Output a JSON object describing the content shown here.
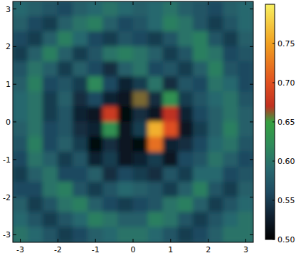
{
  "chart_data": {
    "type": "heatmap",
    "xlim": [
      -3.2,
      3.2
    ],
    "ylim": [
      -3.2,
      3.2
    ],
    "xticks": [
      -3,
      -2,
      -1,
      0,
      1,
      2,
      3
    ],
    "yticks": [
      -3,
      -2,
      -1,
      0,
      1,
      2,
      3
    ],
    "cells": [
      [
        0.59,
        0.58,
        0.57,
        0.56,
        0.58,
        0.59,
        0.6,
        0.59,
        0.58,
        0.59,
        0.6,
        0.58,
        0.57,
        0.56,
        0.58,
        0.59
      ],
      [
        0.58,
        0.56,
        0.55,
        0.58,
        0.6,
        0.61,
        0.58,
        0.56,
        0.57,
        0.59,
        0.61,
        0.6,
        0.57,
        0.55,
        0.57,
        0.59
      ],
      [
        0.56,
        0.55,
        0.58,
        0.61,
        0.59,
        0.56,
        0.55,
        0.57,
        0.56,
        0.55,
        0.57,
        0.6,
        0.61,
        0.57,
        0.55,
        0.58
      ],
      [
        0.55,
        0.58,
        0.61,
        0.58,
        0.55,
        0.57,
        0.6,
        0.61,
        0.6,
        0.58,
        0.55,
        0.57,
        0.61,
        0.6,
        0.56,
        0.57
      ],
      [
        0.57,
        0.6,
        0.58,
        0.55,
        0.58,
        0.56,
        0.54,
        0.58,
        0.6,
        0.56,
        0.57,
        0.55,
        0.58,
        0.61,
        0.57,
        0.56
      ],
      [
        0.58,
        0.61,
        0.56,
        0.57,
        0.55,
        0.62,
        0.56,
        0.53,
        0.55,
        0.6,
        0.54,
        0.57,
        0.56,
        0.6,
        0.59,
        0.56
      ],
      [
        0.59,
        0.6,
        0.55,
        0.58,
        0.54,
        0.56,
        0.53,
        0.52,
        0.66,
        0.54,
        0.63,
        0.55,
        0.57,
        0.59,
        0.6,
        0.57
      ],
      [
        0.59,
        0.6,
        0.55,
        0.57,
        0.53,
        0.52,
        0.68,
        0.51,
        0.54,
        0.52,
        0.67,
        0.53,
        0.56,
        0.58,
        0.6,
        0.58
      ],
      [
        0.58,
        0.6,
        0.56,
        0.57,
        0.54,
        0.53,
        0.63,
        0.52,
        0.55,
        0.76,
        0.7,
        0.52,
        0.55,
        0.58,
        0.61,
        0.58
      ],
      [
        0.57,
        0.61,
        0.56,
        0.58,
        0.55,
        0.51,
        0.54,
        0.52,
        0.51,
        0.72,
        0.53,
        0.54,
        0.56,
        0.59,
        0.6,
        0.57
      ],
      [
        0.56,
        0.6,
        0.58,
        0.55,
        0.57,
        0.53,
        0.55,
        0.52,
        0.53,
        0.55,
        0.52,
        0.56,
        0.57,
        0.6,
        0.58,
        0.56
      ],
      [
        0.55,
        0.58,
        0.6,
        0.56,
        0.56,
        0.58,
        0.54,
        0.56,
        0.55,
        0.54,
        0.57,
        0.55,
        0.59,
        0.59,
        0.56,
        0.57
      ],
      [
        0.56,
        0.56,
        0.6,
        0.61,
        0.57,
        0.55,
        0.57,
        0.59,
        0.58,
        0.57,
        0.55,
        0.58,
        0.61,
        0.57,
        0.55,
        0.58
      ],
      [
        0.58,
        0.55,
        0.57,
        0.6,
        0.61,
        0.58,
        0.56,
        0.55,
        0.56,
        0.57,
        0.6,
        0.61,
        0.58,
        0.55,
        0.57,
        0.59
      ],
      [
        0.59,
        0.57,
        0.55,
        0.57,
        0.59,
        0.61,
        0.6,
        0.58,
        0.58,
        0.61,
        0.6,
        0.57,
        0.55,
        0.57,
        0.59,
        0.6
      ],
      [
        0.6,
        0.59,
        0.57,
        0.55,
        0.56,
        0.58,
        0.59,
        0.6,
        0.6,
        0.59,
        0.57,
        0.55,
        0.56,
        0.58,
        0.6,
        0.6
      ]
    ],
    "colorbar_range": [
      0.5,
      0.8
    ],
    "colorbar_ticks": [
      {
        "value": 0.5,
        "label": "0.50"
      },
      {
        "value": 0.55,
        "label": "0.55"
      },
      {
        "value": 0.6,
        "label": "0.60"
      },
      {
        "value": 0.65,
        "label": "0.65"
      },
      {
        "value": 0.7,
        "label": "0.70"
      },
      {
        "value": 0.75,
        "label": "0.75"
      }
    ]
  }
}
